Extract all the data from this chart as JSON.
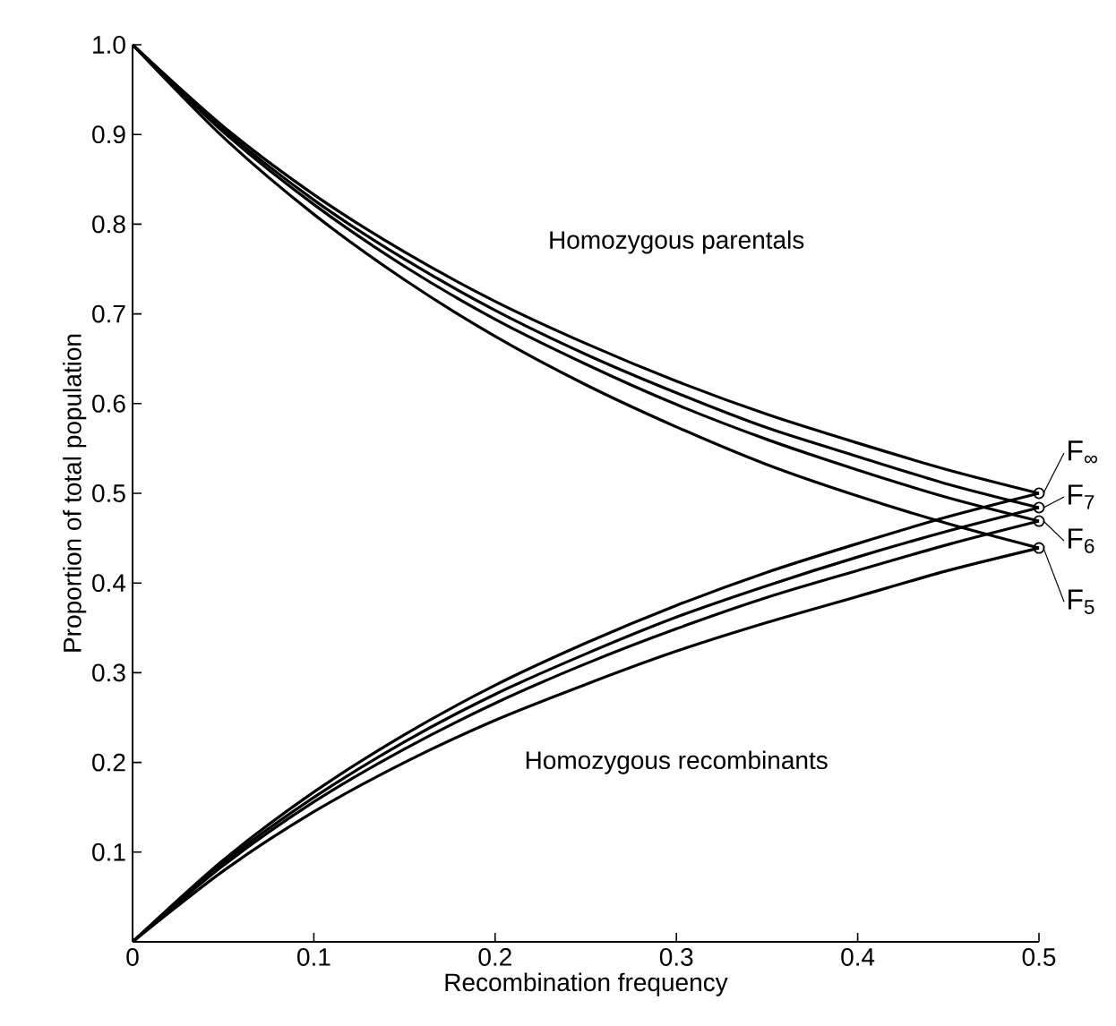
{
  "chart_data": {
    "type": "line",
    "xlabel": "Recombination frequency",
    "ylabel": "Proportion of total population",
    "x": [
      0,
      0.05,
      0.1,
      0.15,
      0.2,
      0.25,
      0.3,
      0.35,
      0.4,
      0.45,
      0.5
    ],
    "xlim": [
      0,
      0.5
    ],
    "ylim": [
      0,
      1.0
    ],
    "xticks": [
      0,
      {
        "value": 0.1,
        "label": "0.1"
      },
      {
        "value": 0.2,
        "label": "0.2"
      },
      {
        "value": 0.3,
        "label": "0.3"
      },
      {
        "value": 0.4,
        "label": "0.4"
      },
      {
        "value": 0.5,
        "label": "0.5"
      }
    ],
    "yticks": [
      {
        "value": 0.1,
        "label": "0.1"
      },
      {
        "value": 0.2,
        "label": "0.2"
      },
      {
        "value": 0.3,
        "label": "0.3"
      },
      {
        "value": 0.4,
        "label": "0.4"
      },
      {
        "value": 0.5,
        "label": "0.5"
      },
      {
        "value": 0.6,
        "label": "0.6"
      },
      {
        "value": 0.7,
        "label": "0.7"
      },
      {
        "value": 0.8,
        "label": "0.8"
      },
      {
        "value": 0.9,
        "label": "0.9"
      },
      {
        "value": 1.0,
        "label": "1.0"
      }
    ],
    "grid": false,
    "legend": "right",
    "line_style": "solid",
    "annotations": [
      "Homozygous parentals",
      "Homozygous recombinants"
    ],
    "series": [
      {
        "color": "#000000",
        "values": [
          1,
          0.909,
          0.833,
          0.769,
          0.714,
          0.667,
          0.625,
          0.588,
          0.556,
          0.526,
          0.5
        ]
      },
      {
        "color": "#000000",
        "values": [
          1,
          0.906,
          0.827,
          0.761,
          0.704,
          0.655,
          0.612,
          0.573,
          0.541,
          0.51,
          0.484
        ]
      },
      {
        "color": "#000000",
        "values": [
          1,
          0.903,
          0.822,
          0.753,
          0.694,
          0.644,
          0.599,
          0.56,
          0.526,
          0.495,
          0.469
        ]
      },
      {
        "color": "#000000",
        "values": [
          1,
          0.897,
          0.811,
          0.738,
          0.675,
          0.621,
          0.574,
          0.532,
          0.497,
          0.466,
          0.439
        ]
      },
      {
        "color": "#000000",
        "values": [
          0,
          0.091,
          0.167,
          0.231,
          0.286,
          0.333,
          0.375,
          0.412,
          0.444,
          0.474,
          0.5
        ]
      },
      {
        "color": "#000000",
        "values": [
          0,
          0.088,
          0.161,
          0.223,
          0.276,
          0.321,
          0.362,
          0.397,
          0.429,
          0.458,
          0.484
        ]
      },
      {
        "color": "#000000",
        "values": [
          0,
          0.085,
          0.156,
          0.215,
          0.266,
          0.31,
          0.349,
          0.384,
          0.414,
          0.443,
          0.469
        ]
      },
      {
        "color": "#000000",
        "values": [
          0,
          0.079,
          0.145,
          0.2,
          0.247,
          0.287,
          0.324,
          0.356,
          0.385,
          0.414,
          0.439
        ]
      },
      {
        "type": "scatter",
        "name": "F$_{∞}$",
        "color": "#000000",
        "marker": "circle",
        "values": [
          null,
          null,
          null,
          null,
          null,
          null,
          null,
          null,
          null,
          null,
          0.5
        ]
      },
      {
        "type": "scatter",
        "name": "F$_{7}$",
        "color": "#000000",
        "marker": "circle",
        "values": [
          null,
          null,
          null,
          null,
          null,
          null,
          null,
          null,
          null,
          null,
          0.484
        ]
      },
      {
        "type": "scatter",
        "name": "F$_{6}$",
        "color": "#000000",
        "marker": "circle",
        "values": [
          null,
          null,
          null,
          null,
          null,
          null,
          null,
          null,
          null,
          null,
          0.469
        ]
      },
      {
        "type": "scatter",
        "name": "F$_{5}$",
        "color": "#000000",
        "marker": "circle",
        "values": [
          null,
          null,
          null,
          null,
          null,
          null,
          null,
          null,
          null,
          null,
          0.439
        ]
      }
    ]
  }
}
